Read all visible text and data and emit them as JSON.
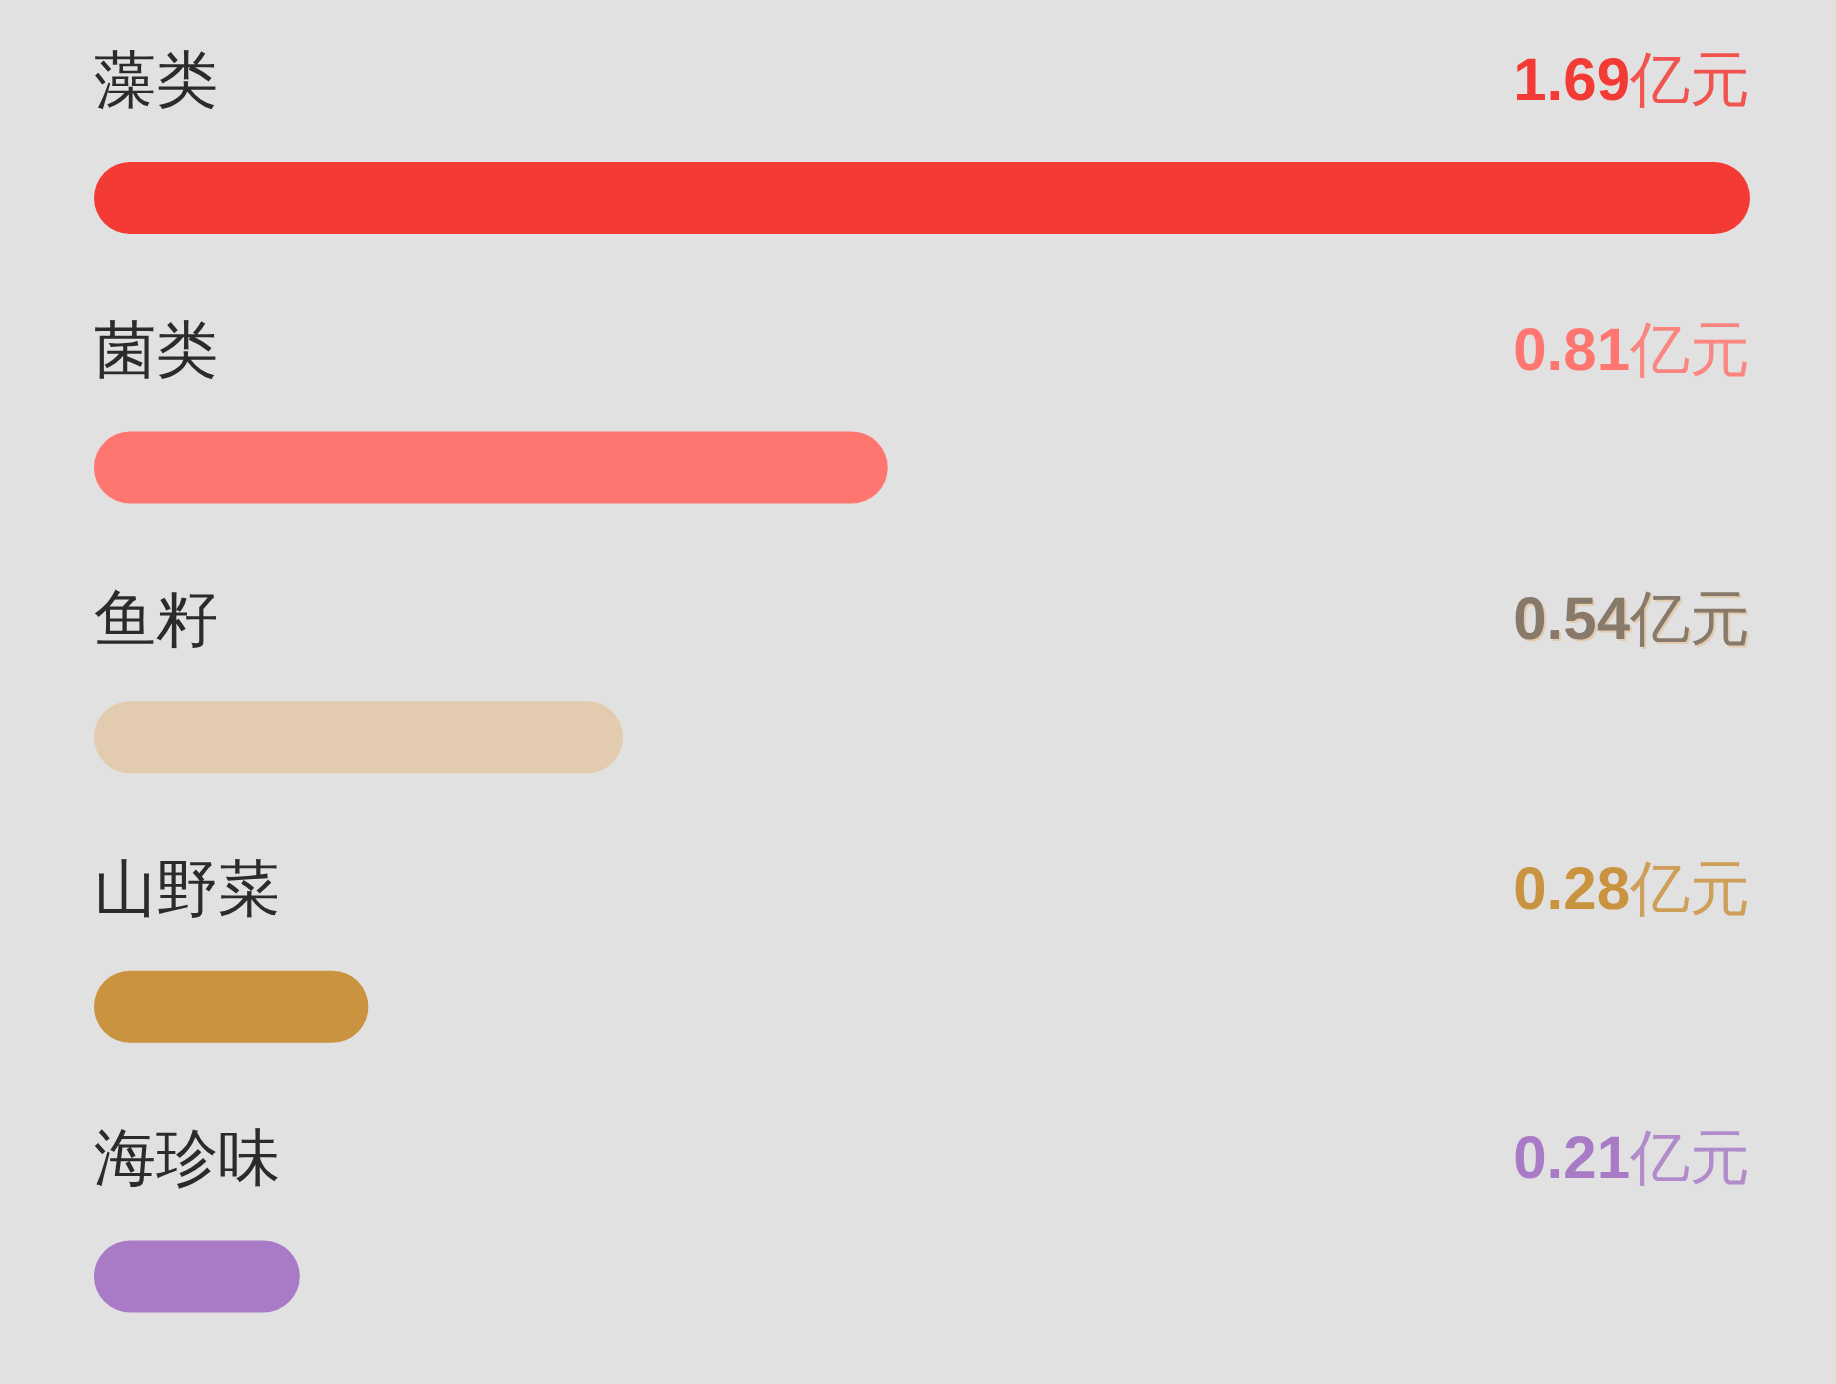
{
  "chart_data": {
    "type": "bar",
    "orientation": "horizontal",
    "categories": [
      "藻类",
      "菌类",
      "鱼籽",
      "山野菜",
      "海珍味"
    ],
    "values": [
      1.69,
      0.81,
      0.54,
      0.28,
      0.21
    ],
    "colors": [
      "#f33a35",
      "#ff7670",
      "#e3cbb0",
      "#c9933f",
      "#a97bc6"
    ],
    "value_labels": [
      "1.69亿元",
      "0.81亿元",
      "0.54亿元",
      "0.28亿元",
      "0.21亿元"
    ]
  }
}
